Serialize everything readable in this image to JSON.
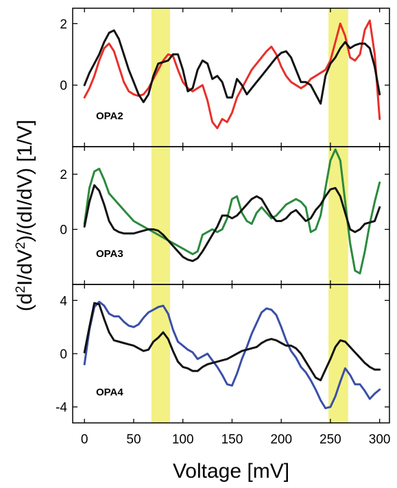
{
  "chart_data": {
    "type": "line",
    "xlabel": "Voltage [mV]",
    "ylabel": "(d²I/dV²)/(dI/dV) [1/V]",
    "xlim": [
      -12,
      310
    ],
    "x_ticks": [
      0,
      50,
      100,
      150,
      200,
      250,
      300
    ],
    "highlight_bands": [
      [
        68,
        87
      ],
      [
        248,
        268
      ]
    ],
    "band_color": "#f1ef6f",
    "panels": [
      {
        "label": "OPA2",
        "ylim": [
          -2.0,
          2.5
        ],
        "y_ticks": [
          0,
          2
        ],
        "series": [
          {
            "color": "#e8302a",
            "x": [
              0,
              5,
              10,
              15,
              20,
              25,
              30,
              35,
              40,
              45,
              50,
              55,
              60,
              65,
              70,
              75,
              80,
              85,
              90,
              95,
              100,
              105,
              110,
              115,
              120,
              125,
              130,
              135,
              140,
              145,
              150,
              155,
              160,
              165,
              170,
              175,
              180,
              185,
              190,
              195,
              200,
              205,
              210,
              215,
              220,
              225,
              230,
              235,
              240,
              245,
              250,
              255,
              260,
              265,
              270,
              275,
              280,
              285,
              290,
              295,
              300
            ],
            "y": [
              -0.4,
              -0.1,
              0.3,
              0.8,
              1.2,
              1.35,
              1.1,
              0.6,
              0.1,
              -0.2,
              -0.3,
              -0.35,
              -0.3,
              -0.1,
              0.2,
              0.5,
              0.8,
              1.0,
              0.95,
              0.5,
              0.1,
              -0.1,
              -0.2,
              -0.1,
              0.0,
              -0.5,
              -1.2,
              -1.4,
              -1.1,
              -1.2,
              -0.9,
              -0.4,
              -0.1,
              0.2,
              0.5,
              0.7,
              0.9,
              1.1,
              1.25,
              1.0,
              0.6,
              0.3,
              0.1,
              0.0,
              -0.1,
              0.0,
              0.2,
              0.3,
              0.4,
              0.5,
              0.8,
              1.4,
              2.0,
              1.6,
              0.9,
              0.8,
              1.0,
              1.8,
              2.1,
              1.0,
              -1.1
            ]
          },
          {
            "color": "#111111",
            "x": [
              0,
              5,
              10,
              15,
              20,
              25,
              30,
              35,
              40,
              45,
              50,
              55,
              60,
              65,
              70,
              75,
              80,
              85,
              90,
              95,
              100,
              105,
              110,
              115,
              120,
              125,
              130,
              135,
              140,
              145,
              150,
              155,
              160,
              165,
              170,
              175,
              180,
              185,
              190,
              195,
              200,
              205,
              210,
              215,
              220,
              225,
              230,
              235,
              240,
              245,
              250,
              255,
              260,
              265,
              270,
              275,
              280,
              285,
              290,
              295,
              300
            ],
            "y": [
              0.0,
              0.4,
              0.7,
              1.0,
              1.4,
              1.7,
              1.78,
              1.5,
              1.0,
              0.5,
              0.1,
              -0.3,
              -0.55,
              -0.3,
              0.3,
              0.7,
              0.75,
              0.8,
              1.0,
              1.0,
              0.5,
              -0.2,
              -0.1,
              0.5,
              0.8,
              0.7,
              0.2,
              0.3,
              0.1,
              -0.4,
              -0.4,
              0.2,
              0.0,
              -0.3,
              -0.1,
              0.1,
              0.3,
              0.5,
              0.7,
              0.9,
              1.05,
              1.1,
              0.9,
              0.5,
              0.1,
              0.1,
              0.0,
              -0.3,
              -0.6,
              0.3,
              0.7,
              0.9,
              1.2,
              1.4,
              1.2,
              1.3,
              1.35,
              1.35,
              1.2,
              0.6,
              -0.3
            ]
          }
        ]
      },
      {
        "label": "OPA3",
        "ylim": [
          -2.0,
          3.0
        ],
        "y_ticks": [
          0,
          2
        ],
        "series": [
          {
            "color": "#2b8a3e",
            "x": [
              0,
              5,
              10,
              15,
              20,
              25,
              30,
              35,
              40,
              45,
              50,
              55,
              60,
              65,
              70,
              75,
              80,
              85,
              90,
              95,
              100,
              105,
              110,
              115,
              120,
              125,
              130,
              135,
              140,
              145,
              150,
              155,
              160,
              165,
              170,
              175,
              180,
              185,
              190,
              195,
              200,
              205,
              210,
              215,
              220,
              225,
              230,
              235,
              240,
              245,
              250,
              255,
              260,
              265,
              270,
              275,
              280,
              285,
              290,
              295,
              300
            ],
            "y": [
              0.2,
              1.5,
              2.1,
              2.2,
              1.8,
              1.3,
              1.1,
              0.9,
              0.7,
              0.5,
              0.3,
              0.2,
              0.1,
              0.0,
              -0.1,
              -0.2,
              -0.3,
              -0.4,
              -0.5,
              -0.6,
              -0.7,
              -0.8,
              -0.9,
              -0.8,
              -0.2,
              -0.1,
              0.0,
              -0.1,
              0.0,
              0.4,
              1.1,
              1.2,
              0.6,
              0.3,
              0.2,
              0.6,
              0.8,
              0.6,
              0.4,
              0.5,
              0.7,
              0.9,
              1.0,
              1.1,
              1.0,
              0.8,
              -0.1,
              0.0,
              0.5,
              1.5,
              2.5,
              2.9,
              2.5,
              1.0,
              -0.5,
              -1.5,
              -1.6,
              -0.8,
              0.2,
              1.0,
              1.7
            ]
          },
          {
            "color": "#111111",
            "x": [
              0,
              5,
              10,
              15,
              20,
              25,
              30,
              35,
              40,
              45,
              50,
              55,
              60,
              65,
              70,
              75,
              80,
              85,
              90,
              95,
              100,
              105,
              110,
              115,
              120,
              125,
              130,
              135,
              140,
              145,
              150,
              155,
              160,
              165,
              170,
              175,
              180,
              185,
              190,
              195,
              200,
              205,
              210,
              215,
              220,
              225,
              230,
              235,
              240,
              245,
              250,
              255,
              260,
              265,
              270,
              275,
              280,
              285,
              290,
              295,
              300
            ],
            "y": [
              0.1,
              1.0,
              1.6,
              1.4,
              0.9,
              0.3,
              0.0,
              -0.1,
              -0.15,
              -0.15,
              -0.15,
              -0.1,
              -0.05,
              0.0,
              0.0,
              -0.05,
              -0.2,
              -0.4,
              -0.6,
              -0.8,
              -1.0,
              -1.1,
              -1.15,
              -1.05,
              -0.8,
              -0.5,
              -0.2,
              0.1,
              0.5,
              0.5,
              0.4,
              0.5,
              0.7,
              0.9,
              1.1,
              1.2,
              1.1,
              0.8,
              0.5,
              0.3,
              0.3,
              0.4,
              0.6,
              0.7,
              0.5,
              0.3,
              0.4,
              0.7,
              0.9,
              1.2,
              1.45,
              1.5,
              1.2,
              0.6,
              0.0,
              -0.1,
              0.0,
              0.2,
              0.25,
              0.3,
              0.8
            ]
          }
        ]
      },
      {
        "label": "OPA4",
        "ylim": [
          -5.2,
          5.2
        ],
        "y_ticks": [
          -4,
          0,
          4
        ],
        "series": [
          {
            "color": "#3a4fa8",
            "x": [
              0,
              5,
              10,
              15,
              20,
              25,
              30,
              35,
              40,
              45,
              50,
              55,
              60,
              65,
              70,
              75,
              80,
              85,
              90,
              95,
              100,
              105,
              110,
              115,
              120,
              125,
              130,
              135,
              140,
              145,
              150,
              155,
              160,
              165,
              170,
              175,
              180,
              185,
              190,
              195,
              200,
              205,
              210,
              215,
              220,
              225,
              230,
              235,
              240,
              245,
              250,
              255,
              260,
              265,
              270,
              275,
              280,
              285,
              290,
              295,
              300
            ],
            "y": [
              -0.8,
              1.8,
              3.5,
              3.9,
              3.6,
              3.0,
              2.8,
              2.8,
              2.4,
              2.1,
              2.0,
              2.2,
              2.7,
              3.1,
              3.3,
              3.5,
              3.6,
              3.0,
              1.8,
              0.9,
              0.6,
              0.3,
              0.1,
              -0.4,
              -0.2,
              0.0,
              -0.5,
              -1.0,
              -1.6,
              -2.3,
              -2.4,
              -1.5,
              -0.4,
              0.5,
              1.5,
              2.3,
              3.1,
              3.4,
              3.3,
              2.9,
              2.0,
              1.0,
              0.2,
              -0.3,
              -1.0,
              -1.4,
              -2.0,
              -2.7,
              -3.5,
              -4.1,
              -4.0,
              -3.2,
              -2.1,
              -1.1,
              -1.6,
              -2.3,
              -2.3,
              -2.8,
              -3.4,
              -3.0,
              -2.7
            ]
          },
          {
            "color": "#111111",
            "x": [
              0,
              5,
              10,
              15,
              20,
              25,
              30,
              35,
              40,
              45,
              50,
              55,
              60,
              65,
              70,
              75,
              80,
              85,
              90,
              95,
              100,
              105,
              110,
              115,
              120,
              125,
              130,
              135,
              140,
              145,
              150,
              155,
              160,
              165,
              170,
              175,
              180,
              185,
              190,
              195,
              200,
              205,
              210,
              215,
              220,
              225,
              230,
              235,
              240,
              245,
              250,
              255,
              260,
              265,
              270,
              275,
              280,
              285,
              290,
              295,
              300
            ],
            "y": [
              0.1,
              2.0,
              3.8,
              3.7,
              2.6,
              1.6,
              1.0,
              0.9,
              0.8,
              0.7,
              0.6,
              0.4,
              0.2,
              0.3,
              0.9,
              1.2,
              1.6,
              1.1,
              0.2,
              -0.6,
              -1.0,
              -1.1,
              -1.3,
              -1.3,
              -1.0,
              -0.8,
              -0.7,
              -0.6,
              -0.5,
              -0.4,
              -0.2,
              0.0,
              0.2,
              0.3,
              0.4,
              0.5,
              0.8,
              1.0,
              1.1,
              1.0,
              0.8,
              0.6,
              0.6,
              0.4,
              0.0,
              -0.6,
              -1.2,
              -1.8,
              -2.0,
              -1.2,
              -0.4,
              0.5,
              1.0,
              0.9,
              0.5,
              0.1,
              -0.3,
              -0.7,
              -1.0,
              -1.2,
              -1.2
            ]
          }
        ]
      }
    ]
  }
}
